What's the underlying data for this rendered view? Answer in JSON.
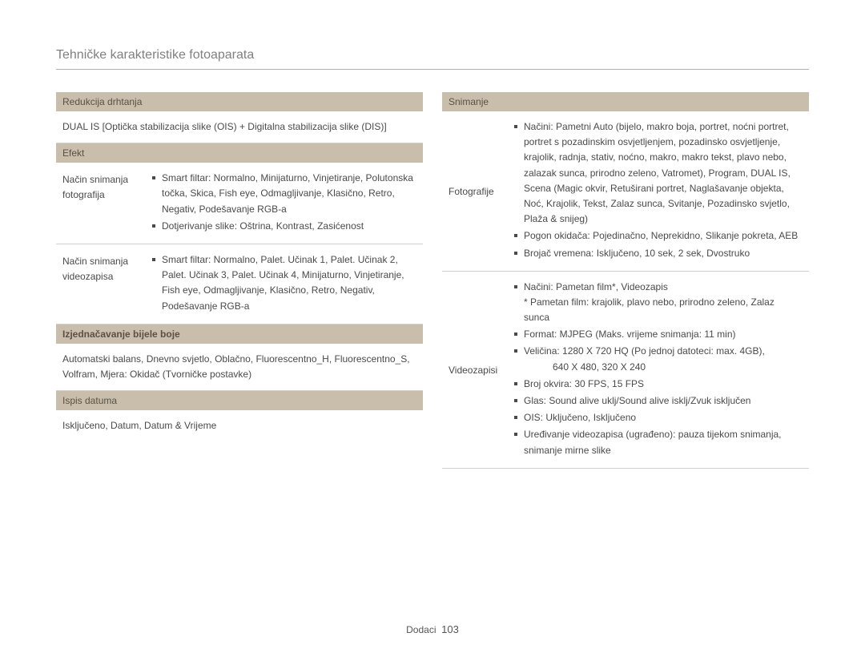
{
  "page_title": "Tehničke karakteristike fotoaparata",
  "footer": {
    "section": "Dodaci",
    "page": "103"
  },
  "left": {
    "shake_reduction": {
      "header": "Redukcija drhtanja",
      "body": "DUAL IS [Optička stabilizacija slike (OIS) + Digitalna stabilizacija slike (DIS)]"
    },
    "effect": {
      "header": "Efekt",
      "photo_label": "Način snimanja fotografija",
      "photo_b1": "Smart filtar: Normalno, Minijaturno, Vinjetiranje, Polutonska točka, Skica, Fish eye, Odmagljivanje, Klasično, Retro, Negativ, Podešavanje RGB-a",
      "photo_b2": "Dotjerivanje slike: Oštrina, Kontrast, Zasićenost",
      "video_label": "Način snimanja videozapisa",
      "video_b1": "Smart filtar: Normalno, Palet. Učinak 1, Palet. Učinak 2, Palet. Učinak 3, Palet. Učinak 4, Minijaturno, Vinjetiranje, Fish eye, Odmagljivanje, Klasično, Retro, Negativ, Podešavanje RGB-a"
    },
    "white_balance": {
      "header": "Izjednačavanje bijele boje",
      "body": "Automatski balans, Dnevno svjetlo, Oblačno, Fluorescentno_H, Fluorescentno_S, Volfram, Mjera: Okidač (Tvorničke postavke)"
    },
    "date_print": {
      "header": "Ispis datuma",
      "body": "Isključeno, Datum, Datum & Vrijeme"
    }
  },
  "right": {
    "shooting": {
      "header": "Snimanje",
      "photos_label": "Fotografije",
      "p_b1": "Načini: Pametni Auto (bijelo, makro boja, portret, noćni portret, portret s pozadinskim osvjetljenjem, pozadinsko osvjetljenje, krajolik, radnja, stativ, noćno, makro, makro tekst, plavo nebo, zalazak sunca, prirodno zeleno, Vatromet), Program, DUAL IS, Scena (Magic okvir, Retuširani portret, Naglašavanje objekta, Noć, Krajolik, Tekst, Zalaz sunca, Svitanje, Pozadinsko svjetlo, Plaža & snijeg)",
      "p_b2": "Pogon okidača: Pojedinačno, Neprekidno, Slikanje pokreta, AEB",
      "p_b3": "Brojač vremena: Isključeno, 10 sek, 2 sek, Dvostruko",
      "videos_label": "Videozapisi",
      "v_b1": "Načini: Pametan film*, Videozapis",
      "v_b1a": "* Pametan film: krajolik, plavo nebo, prirodno zeleno, Zalaz sunca",
      "v_b2": "Format: MJPEG (Maks. vrijeme snimanja: 11 min)",
      "v_b3": "Veličina: 1280 X 720 HQ (Po jednoj datoteci: max. 4GB),",
      "v_b3a": "640 X 480, 320 X 240",
      "v_b4": "Broj okvira: 30 FPS, 15 FPS",
      "v_b5": "Glas: Sound alive uklj/Sound alive isklj/Zvuk isključen",
      "v_b6": "OIS: Uključeno, Isključeno",
      "v_b7": "Uređivanje videozapisa (ugrađeno): pauza tijekom snimanja, snimanje mirne slike"
    }
  }
}
